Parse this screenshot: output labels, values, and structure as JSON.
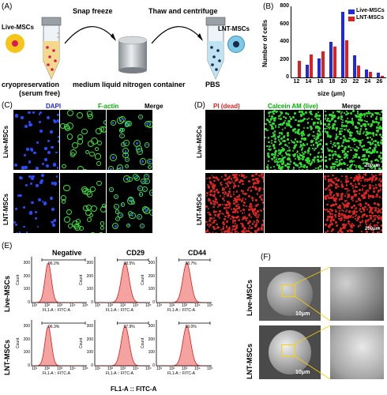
{
  "panel_labels": {
    "a": "(A)",
    "b": "(B)",
    "c": "(C)",
    "d": "(D)",
    "e": "(E)",
    "f": "(F)"
  },
  "panel_a": {
    "live_label": "Live-MSCs",
    "lnt_label": "LNT-MSCs",
    "step1": "Snap freeze",
    "step2": "Thaw and centrifuge",
    "caption_left": "cryopreservation",
    "caption_left2": "(serum free)",
    "caption_mid": "medium liquid nitrogen container",
    "caption_right": "PBS",
    "colors": {
      "cell_outer": "#f5c518",
      "cell_core": "#d81b60",
      "lnt_outer": "#7ec8e8",
      "lnt_core": "#1a2a4a"
    }
  },
  "chart_data": {
    "type": "bar",
    "categories": [
      "12",
      "14",
      "16",
      "18",
      "20",
      "22",
      "24",
      "26"
    ],
    "series": [
      {
        "name": "Live-MSCs",
        "color": "#1f2bdb",
        "values": [
          0,
          140,
          210,
          400,
          740,
          250,
          90,
          50
        ]
      },
      {
        "name": "LNT-MSCs",
        "color": "#e02020",
        "values": [
          190,
          260,
          290,
          350,
          420,
          130,
          60,
          20
        ]
      }
    ],
    "xlabel": "size (μm)",
    "ylabel": "Number of cells",
    "yticks": [
      "0",
      "200",
      "400",
      "600",
      "800"
    ],
    "ylim": [
      0,
      800
    ],
    "legend": "top-right"
  },
  "panel_c": {
    "headers": [
      "DAPI",
      "F-actin",
      "Merge"
    ],
    "header_colors": [
      "#1f2bdb",
      "#00b000",
      "#000000"
    ],
    "rows": [
      "Live-MSCs",
      "LNT-MSCs"
    ],
    "scale": "50μm"
  },
  "panel_d": {
    "headers": [
      "PI (dead)",
      "Calcein AM (live)",
      "Merge"
    ],
    "header_colors": [
      "#e02020",
      "#00b000",
      "#000000"
    ],
    "rows": [
      "Live-MSCs",
      "LNT-MSCs"
    ],
    "scale": "200μm"
  },
  "panel_e": {
    "headers": [
      "Negative",
      "CD29",
      "CD44"
    ],
    "rows": [
      "Live-MSCs",
      "LNT-MSCs"
    ],
    "percents": [
      [
        "96.2%",
        "98.5%",
        "98.7%"
      ],
      [
        "96.3%",
        "97.9%",
        "99.0%"
      ]
    ],
    "yticks": [
      "0",
      "100",
      "200",
      "300"
    ],
    "xticks": [
      "10¹",
      "10²",
      "10³",
      "10⁴",
      "10⁵"
    ],
    "ylabel": "Count",
    "axis_caption": "FL1-A :: FITC-A",
    "bottom_label": "FL1-A :: FITC-A",
    "fill": "#f4a3a0",
    "stroke": "#d81b1b"
  },
  "panel_f": {
    "rows": [
      "Live-MSCs",
      "LNT-MSCs"
    ],
    "scale": "10μm"
  }
}
